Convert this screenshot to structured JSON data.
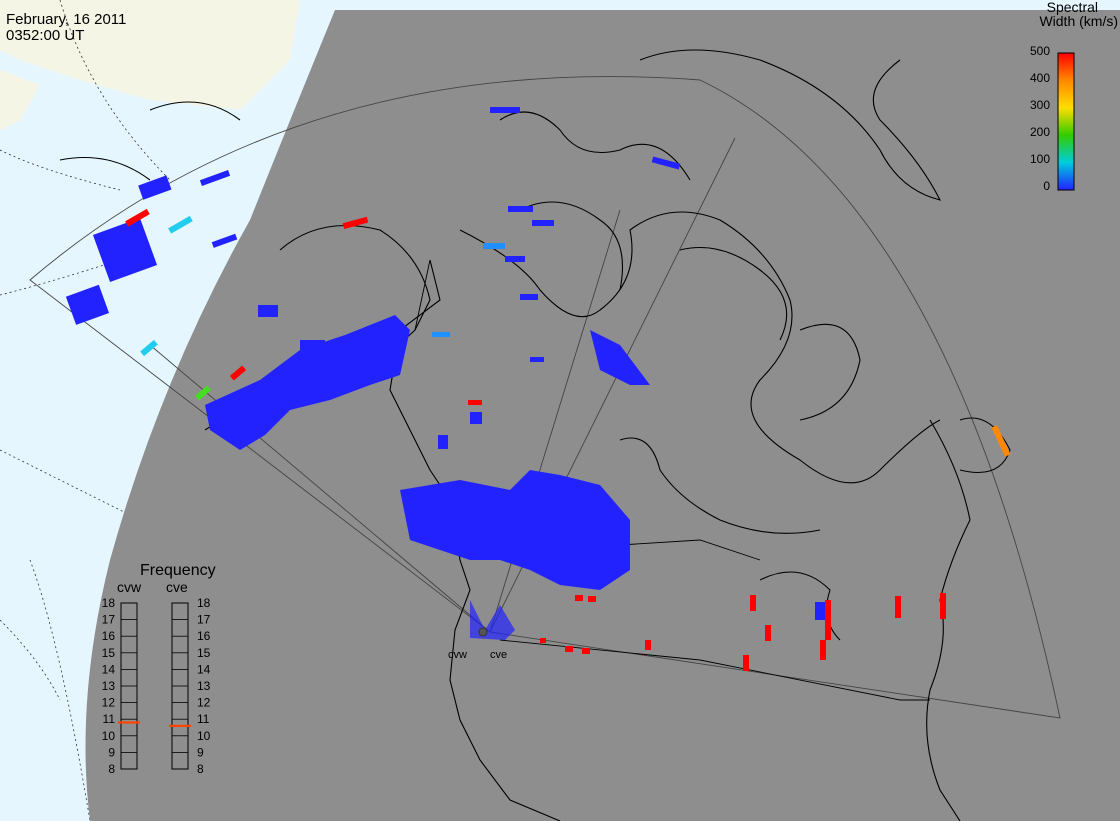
{
  "header": {
    "date": "February, 16 2011",
    "time": "0352:00 UT"
  },
  "colorbar": {
    "title_line1": "Spectral",
    "title_line2": "Width (km/s)",
    "ticks": [
      "500",
      "400",
      "300",
      "200",
      "100",
      "0"
    ],
    "colors": [
      "#ff0000",
      "#ff8800",
      "#ffdd00",
      "#33cc00",
      "#00ccdd",
      "#2222ff"
    ]
  },
  "frequency_panel": {
    "title": "Frequency",
    "radars": [
      {
        "code": "cvw",
        "value_mhz": 10.8
      },
      {
        "code": "cve",
        "value_mhz": 10.6
      }
    ],
    "ticks": [
      "18",
      "17",
      "16",
      "15",
      "14",
      "13",
      "12",
      "11",
      "10",
      "9",
      "8"
    ],
    "marker_color": "#ff4400"
  },
  "radar_site_labels": [
    "cvw",
    "cve"
  ],
  "colors": {
    "night": "#8e8e8e",
    "land_day": "#f5f5e6",
    "ocean_day": "#e6f6fe",
    "coastline": "#000000",
    "low": "#2222ff",
    "med_low": "#1e90ff",
    "cyan": "#22ccee",
    "green": "#44dd22",
    "orange": "#ff8800",
    "high": "#ff0000"
  }
}
